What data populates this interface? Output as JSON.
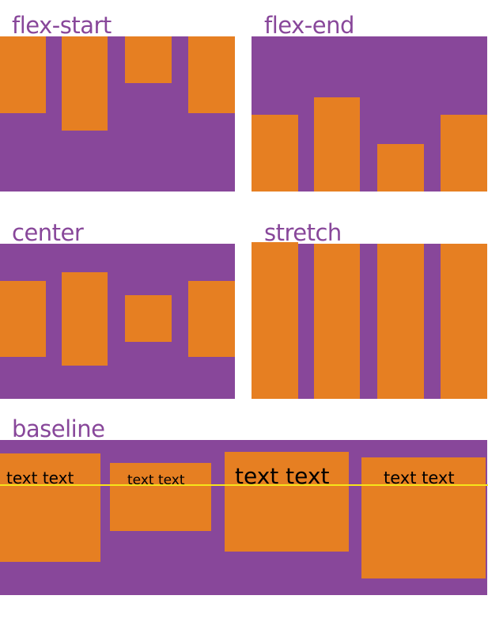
{
  "colors": {
    "container": "#88479a",
    "item": "#e67f22",
    "baseline_line": "#f5e51a",
    "label": "#88479a"
  },
  "labels": {
    "flex_start": "flex-start",
    "flex_end": "flex-end",
    "center": "center",
    "stretch": "stretch",
    "baseline": "baseline"
  },
  "baseline_items": [
    "text text",
    "text text",
    "text text",
    "text text"
  ]
}
